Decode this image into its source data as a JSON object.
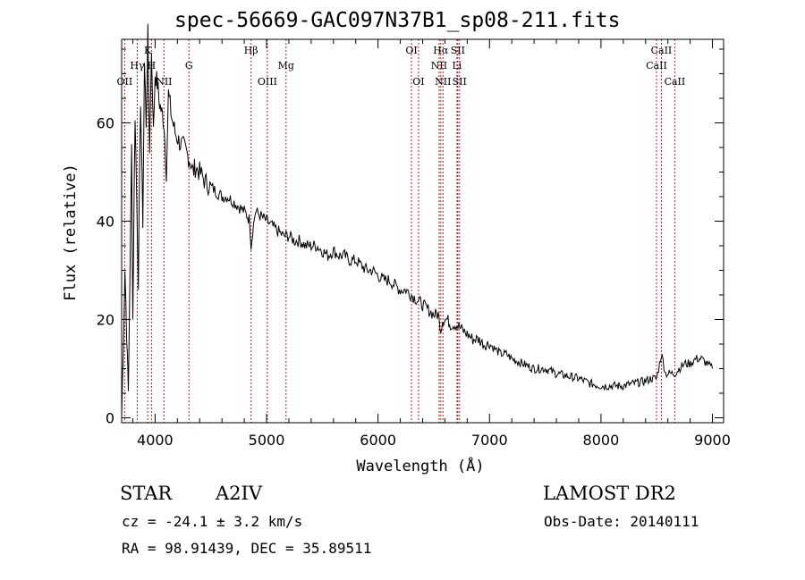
{
  "header": {
    "title": "spec-56669-GAC097N37B1_sp08-211.fits"
  },
  "footer": {
    "object_class": "STAR",
    "subclass": "A2IV",
    "survey": "LAMOST DR2",
    "cz": "cz = -24.1 ± 3.2 km/s",
    "obs_date": "Obs-Date: 20140111",
    "coords": "RA =  98.91439, DEC =  35.89511"
  },
  "colors": {
    "spectrum": "#000000",
    "line_markers": "#b22222",
    "axes": "#000000"
  },
  "chart_data": {
    "type": "line",
    "xlabel": "Wavelength (Å)",
    "ylabel": "Flux (relative)",
    "xlim": [
      3700,
      9100
    ],
    "ylim": [
      -1,
      77
    ],
    "xticks": [
      4000,
      5000,
      6000,
      7000,
      8000,
      9000
    ],
    "yticks": [
      0,
      20,
      40,
      60
    ],
    "series": [
      {
        "x": [
          3700,
          3730,
          3760,
          3790,
          3800,
          3820,
          3835,
          3850,
          3870,
          3890,
          3905,
          3920,
          3935,
          3950,
          3968,
          3985,
          4000,
          4020,
          4040,
          4060,
          4080,
          4101,
          4120,
          4150,
          4180,
          4220,
          4260,
          4300,
          4320,
          4340,
          4360,
          4400,
          4450,
          4500,
          4550,
          4600,
          4650,
          4700,
          4750,
          4800,
          4830,
          4850,
          4861,
          4875,
          4900,
          4950,
          5000,
          5050,
          5100,
          5150,
          5200,
          5250,
          5300,
          5350,
          5400,
          5450,
          5500,
          5550,
          5600,
          5650,
          5700,
          5750,
          5800,
          5850,
          5900,
          5950,
          6000,
          6050,
          6100,
          6150,
          6200,
          6250,
          6300,
          6350,
          6400,
          6450,
          6500,
          6540,
          6563,
          6580,
          6620,
          6650,
          6700,
          6750,
          6800,
          6850,
          6900,
          6950,
          7000,
          7050,
          7100,
          7150,
          7200,
          7300,
          7400,
          7500,
          7600,
          7700,
          7800,
          7850,
          7900,
          8000,
          8100,
          8200,
          8300,
          8400,
          8450,
          8500,
          8542,
          8580,
          8620,
          8662,
          8700,
          8750,
          8800,
          8850,
          8900,
          8950,
          9000
        ],
        "y": [
          0,
          30,
          5,
          55,
          20,
          62,
          45,
          28,
          65,
          40,
          72,
          60,
          78,
          55,
          75,
          58,
          70,
          68,
          64,
          62,
          60,
          50,
          66,
          61,
          58,
          56,
          55,
          53,
          52,
          50,
          51,
          50,
          48,
          47,
          46,
          45,
          45,
          44,
          43,
          42,
          41,
          40,
          35,
          38,
          42,
          41,
          40,
          39,
          38,
          37,
          37,
          36,
          36,
          35,
          35,
          35,
          34,
          33,
          34,
          33,
          33,
          32,
          32,
          31,
          30,
          30,
          29,
          28,
          28,
          27,
          26,
          26,
          25,
          24,
          23,
          22,
          21,
          21,
          18,
          20,
          20,
          19,
          19,
          18,
          17,
          16,
          16,
          15,
          15,
          14,
          13,
          13,
          12,
          11,
          10,
          10,
          9,
          8.5,
          8,
          7.5,
          7,
          6.5,
          6.5,
          6.5,
          7,
          7.5,
          8,
          8,
          13,
          9,
          9,
          9,
          10,
          11,
          11,
          12,
          12,
          11,
          10
        ]
      }
    ],
    "spectral_lines": [
      {
        "name": "OII",
        "wavelength": 3727,
        "row": 2
      },
      {
        "name": "Hγ",
        "wavelength": 3840,
        "row": 1
      },
      {
        "name": "K",
        "wavelength": 3934,
        "row": 0
      },
      {
        "name": "H",
        "wavelength": 3968,
        "row": 1
      },
      {
        "name": "NII",
        "wavelength": 4080,
        "row": 2
      },
      {
        "name": "G",
        "wavelength": 4304,
        "row": 1
      },
      {
        "name": "Hβ",
        "wavelength": 4861,
        "row": 0
      },
      {
        "name": "OIII",
        "wavelength": 5007,
        "row": 2
      },
      {
        "name": "Mg",
        "wavelength": 5175,
        "row": 1
      },
      {
        "name": "OI",
        "wavelength": 6300,
        "row": 0
      },
      {
        "name": "OI",
        "wavelength": 6363,
        "row": 2
      },
      {
        "name": "Hα",
        "wavelength": 6563,
        "row": 0
      },
      {
        "name": "NII",
        "wavelength": 6548,
        "row": 1
      },
      {
        "name": "NII",
        "wavelength": 6583,
        "row": 2
      },
      {
        "name": "SII",
        "wavelength": 6716,
        "row": 0
      },
      {
        "name": "Li",
        "wavelength": 6708,
        "row": 1
      },
      {
        "name": "SII",
        "wavelength": 6731,
        "row": 2
      },
      {
        "name": "CaII",
        "wavelength": 8498,
        "row": 1
      },
      {
        "name": "CaII",
        "wavelength": 8542,
        "row": 0
      },
      {
        "name": "CaII",
        "wavelength": 8662,
        "row": 2
      }
    ]
  }
}
